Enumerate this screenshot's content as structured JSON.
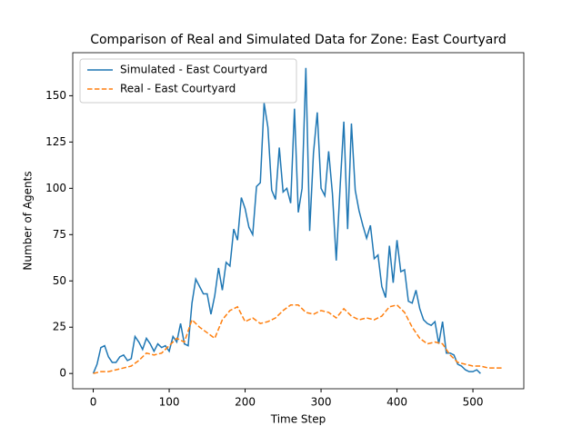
{
  "chart_data": {
    "type": "line",
    "title": "Comparison of Real and Simulated Data for Zone: East Courtyard",
    "xlabel": "Time Step",
    "ylabel": "Number of Agents",
    "xlim": [
      -27,
      567
    ],
    "ylim": [
      -8.25,
      173.25
    ],
    "xticks": [
      0,
      100,
      200,
      300,
      400,
      500
    ],
    "yticks": [
      0,
      25,
      50,
      75,
      100,
      125,
      150
    ],
    "legend": "upper left",
    "series": [
      {
        "name": "Simulated - East Courtyard",
        "color": "#1f77b4",
        "style": "solid",
        "x": [
          0,
          5,
          10,
          15,
          20,
          25,
          30,
          35,
          40,
          45,
          50,
          55,
          60,
          65,
          70,
          75,
          80,
          85,
          90,
          95,
          100,
          105,
          110,
          115,
          120,
          125,
          130,
          135,
          140,
          145,
          150,
          155,
          160,
          165,
          170,
          175,
          180,
          185,
          190,
          195,
          200,
          205,
          210,
          215,
          220,
          225,
          230,
          235,
          240,
          245,
          250,
          255,
          260,
          265,
          270,
          275,
          280,
          285,
          290,
          295,
          300,
          305,
          310,
          315,
          320,
          325,
          330,
          335,
          340,
          345,
          350,
          355,
          360,
          365,
          370,
          375,
          380,
          385,
          390,
          395,
          400,
          405,
          410,
          415,
          420,
          425,
          430,
          435,
          440,
          445,
          450,
          455,
          460,
          465,
          470,
          475,
          480,
          485,
          490,
          495,
          500,
          505,
          510
        ],
        "values": [
          0,
          5,
          14,
          15,
          9,
          6,
          6,
          9,
          10,
          7,
          8,
          20,
          17,
          13,
          19,
          16,
          12,
          16,
          14,
          15,
          12,
          20,
          17,
          27,
          16,
          15,
          38,
          51,
          47,
          43,
          43,
          32,
          42,
          57,
          45,
          60,
          58,
          78,
          72,
          95,
          89,
          79,
          75,
          101,
          103,
          146,
          133,
          99,
          94,
          122,
          98,
          100,
          92,
          143,
          87,
          100,
          165,
          77,
          119,
          141,
          100,
          96,
          120,
          97,
          61,
          100,
          136,
          78,
          135,
          99,
          88,
          80,
          73,
          80,
          62,
          64,
          47,
          41,
          69,
          49,
          72,
          55,
          56,
          39,
          38,
          45,
          35,
          29,
          27,
          26,
          28,
          16,
          28,
          11,
          11,
          10,
          5,
          4,
          2,
          1,
          1,
          2,
          0
        ]
      },
      {
        "name": "Real - East Courtyard",
        "color": "#ff7f0e",
        "style": "dashed",
        "x": [
          0,
          10,
          20,
          30,
          40,
          50,
          60,
          70,
          80,
          90,
          100,
          110,
          120,
          130,
          140,
          150,
          160,
          170,
          180,
          190,
          200,
          210,
          220,
          230,
          240,
          250,
          260,
          270,
          280,
          290,
          300,
          310,
          320,
          330,
          340,
          350,
          360,
          370,
          380,
          390,
          400,
          410,
          420,
          430,
          440,
          450,
          460,
          470,
          480,
          490,
          500,
          510,
          520,
          530,
          540
        ],
        "values": [
          0,
          1,
          1,
          2,
          3,
          4,
          7,
          11,
          10,
          11,
          15,
          19,
          17,
          29,
          25,
          22,
          19,
          29,
          34,
          36,
          28,
          30,
          27,
          28,
          30,
          34,
          37,
          37,
          33,
          32,
          34,
          33,
          30,
          35,
          31,
          29,
          30,
          29,
          31,
          36,
          37,
          33,
          25,
          19,
          16,
          17,
          16,
          10,
          6,
          5,
          4,
          4,
          3,
          3,
          3
        ]
      }
    ]
  }
}
